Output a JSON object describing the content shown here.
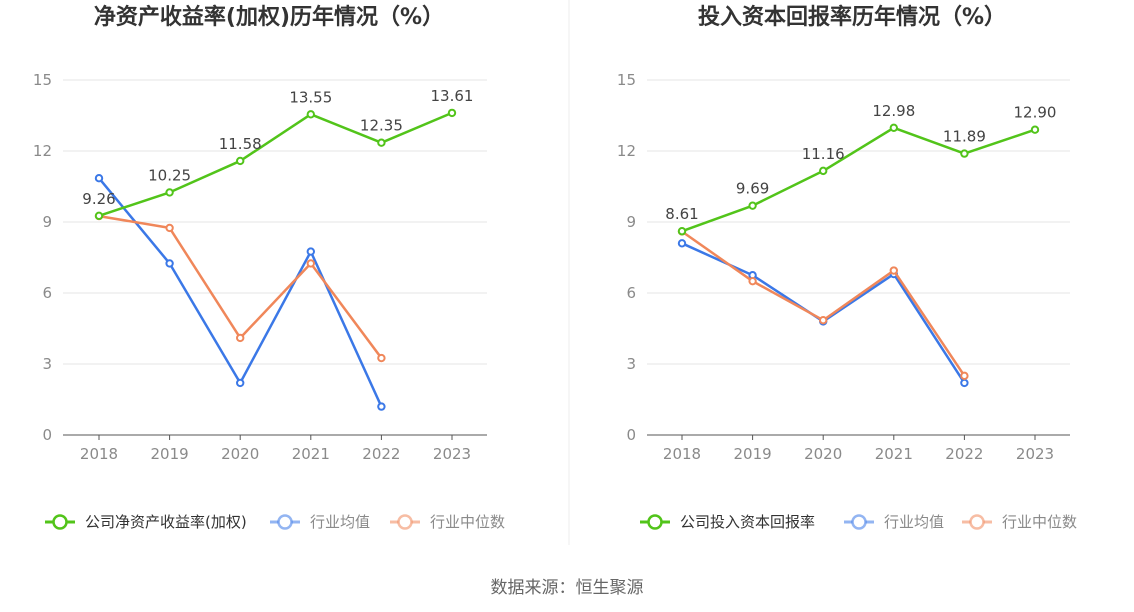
{
  "source": "数据来源：恒生聚源",
  "chart_data": [
    {
      "type": "line",
      "title": "净资产收益率(加权)历年情况（%）",
      "categories": [
        "2018",
        "2019",
        "2020",
        "2021",
        "2022",
        "2023"
      ],
      "ylim": [
        0,
        15
      ],
      "yticks": [
        0,
        3,
        6,
        9,
        12,
        15
      ],
      "grid": true,
      "legend_position": "bottom",
      "series": [
        {
          "name": "公司净资产收益率(加权)",
          "color": "#52c41a",
          "values": [
            9.26,
            10.25,
            11.58,
            13.55,
            12.35,
            13.61
          ],
          "labels": [
            "9.26",
            "10.25",
            "11.58",
            "13.55",
            "12.35",
            "13.61"
          ]
        },
        {
          "name": "行业均值",
          "color": "#3b78e7",
          "values": [
            10.85,
            7.25,
            2.2,
            7.75,
            1.2,
            null
          ]
        },
        {
          "name": "行业中位数",
          "color": "#f0875a",
          "values": [
            9.25,
            8.75,
            4.1,
            7.25,
            3.25,
            null
          ]
        }
      ]
    },
    {
      "type": "line",
      "title": "投入资本回报率历年情况（%）",
      "categories": [
        "2018",
        "2019",
        "2020",
        "2021",
        "2022",
        "2023"
      ],
      "ylim": [
        0,
        15
      ],
      "yticks": [
        0,
        3,
        6,
        9,
        12,
        15
      ],
      "grid": true,
      "legend_position": "bottom",
      "series": [
        {
          "name": "公司投入资本回报率",
          "color": "#52c41a",
          "values": [
            8.61,
            9.69,
            11.16,
            12.98,
            11.89,
            12.9
          ],
          "labels": [
            "8.61",
            "9.69",
            "11.16",
            "12.98",
            "11.89",
            "12.90"
          ]
        },
        {
          "name": "行业均值",
          "color": "#3b78e7",
          "values": [
            8.1,
            6.75,
            4.8,
            6.8,
            2.2,
            null
          ]
        },
        {
          "name": "行业中位数",
          "color": "#f0875a",
          "values": [
            8.6,
            6.5,
            4.85,
            6.95,
            2.5,
            null
          ]
        }
      ]
    }
  ]
}
